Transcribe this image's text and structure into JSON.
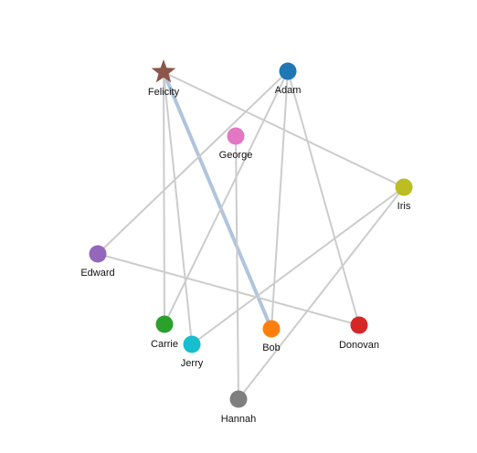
{
  "nodes": [
    {
      "id": "felicity",
      "label": "Felicity",
      "color": "#8c564b",
      "shape": "star"
    },
    {
      "id": "adam",
      "label": "Adam",
      "color": "#1f77b4",
      "shape": "circle"
    },
    {
      "id": "george",
      "label": "George",
      "color": "#e377c2",
      "shape": "circle"
    },
    {
      "id": "iris",
      "label": "Iris",
      "color": "#bcbd22",
      "shape": "circle"
    },
    {
      "id": "edward",
      "label": "Edward",
      "color": "#9467bd",
      "shape": "circle"
    },
    {
      "id": "carrie",
      "label": "Carrie",
      "color": "#2ca02c",
      "shape": "circle"
    },
    {
      "id": "jerry",
      "label": "Jerry",
      "color": "#17becf",
      "shape": "circle"
    },
    {
      "id": "bob",
      "label": "Bob",
      "color": "#ff7f0e",
      "shape": "circle"
    },
    {
      "id": "donovan",
      "label": "Donovan",
      "color": "#d62728",
      "shape": "circle"
    },
    {
      "id": "hannah",
      "label": "Hannah",
      "color": "#7f7f7f",
      "shape": "circle"
    }
  ],
  "edges": [
    {
      "source": "felicity",
      "target": "bob",
      "highlighted": true
    },
    {
      "source": "felicity",
      "target": "iris",
      "highlighted": false
    },
    {
      "source": "felicity",
      "target": "carrie",
      "highlighted": false
    },
    {
      "source": "felicity",
      "target": "jerry",
      "highlighted": false
    },
    {
      "source": "adam",
      "target": "edward",
      "highlighted": false
    },
    {
      "source": "adam",
      "target": "carrie",
      "highlighted": false
    },
    {
      "source": "adam",
      "target": "bob",
      "highlighted": false
    },
    {
      "source": "adam",
      "target": "donovan",
      "highlighted": false
    },
    {
      "source": "george",
      "target": "hannah",
      "highlighted": false
    },
    {
      "source": "iris",
      "target": "jerry",
      "highlighted": false
    },
    {
      "source": "iris",
      "target": "hannah",
      "highlighted": false
    },
    {
      "source": "edward",
      "target": "donovan",
      "highlighted": false
    }
  ],
  "colors": {
    "edge": "#cccccc",
    "highlight_edge": "#b0c4de"
  }
}
